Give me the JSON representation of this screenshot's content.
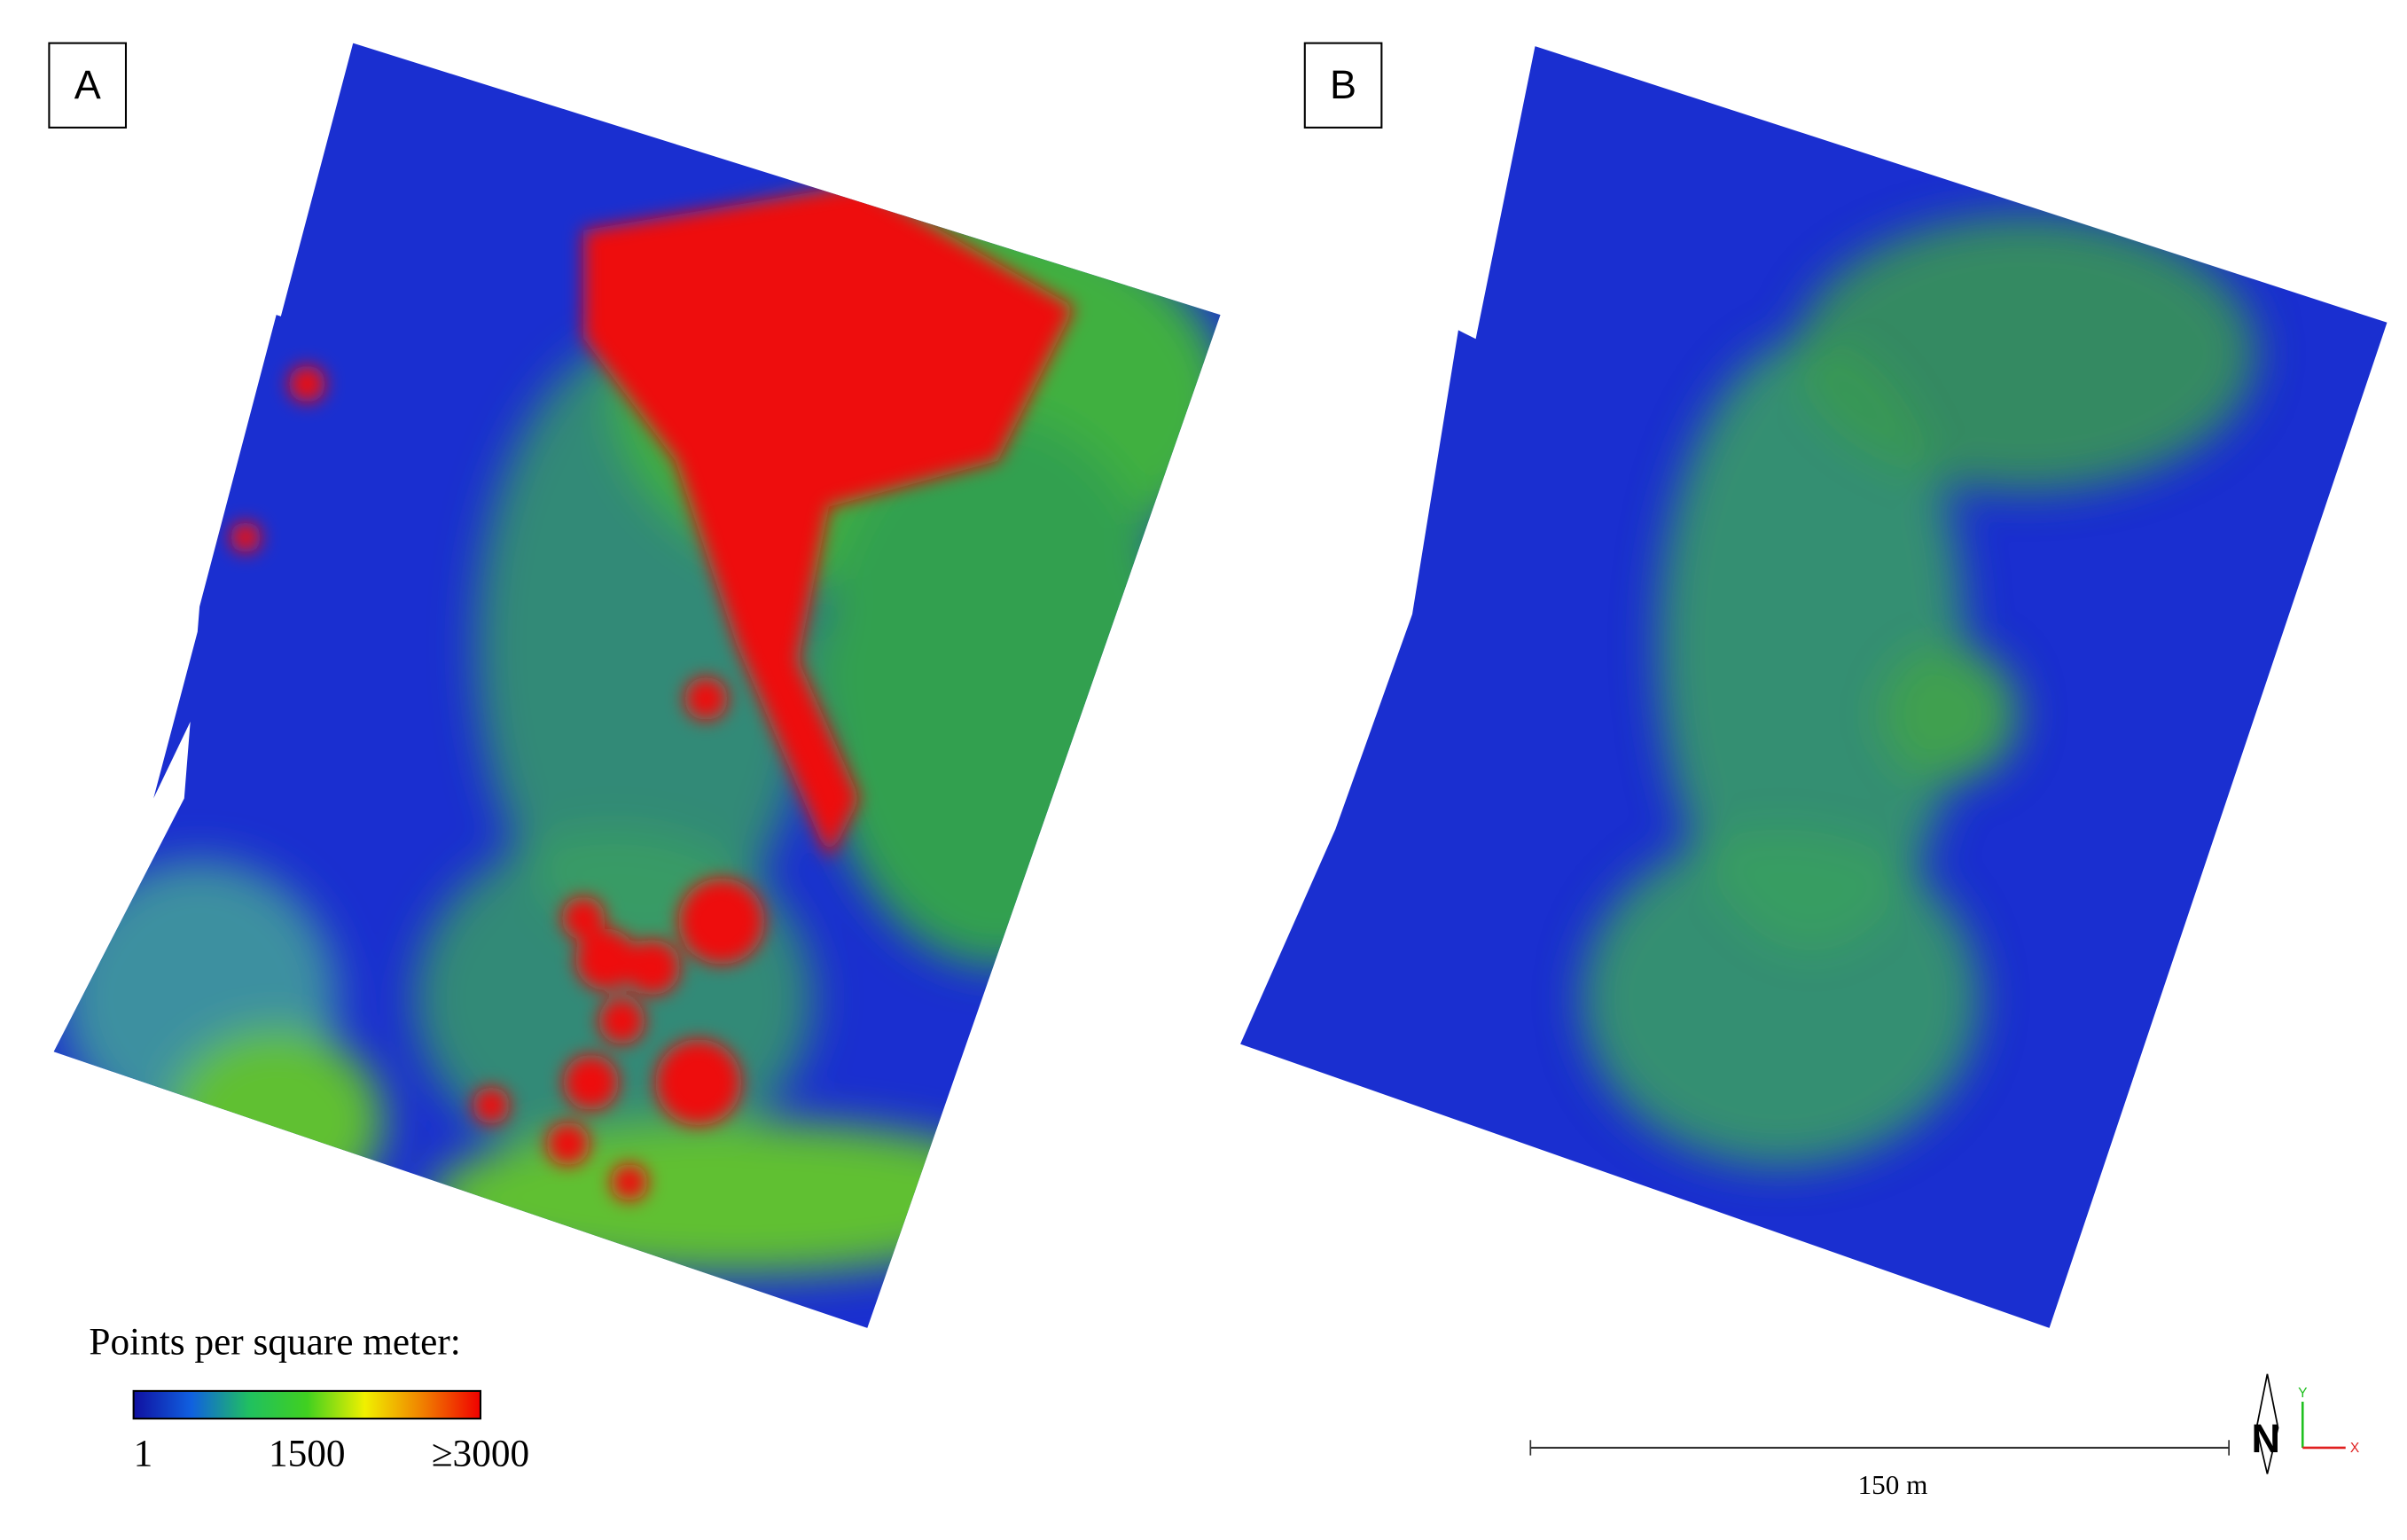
{
  "panels": [
    {
      "label": "A"
    },
    {
      "label": "B"
    }
  ],
  "legend": {
    "title": "Points per square meter:",
    "colors": [
      "#1010a0",
      "#1060e0",
      "#20c060",
      "#40d020",
      "#f0f000",
      "#f08000",
      "#f00000"
    ],
    "ticks": [
      1,
      1500,
      {
        "value": 3000,
        "label": "≥3000"
      }
    ]
  },
  "scale_bar": {
    "label": "150 m"
  },
  "north_arrow": {
    "label": "N",
    "y_axis": "Y",
    "x_axis": "X"
  }
}
